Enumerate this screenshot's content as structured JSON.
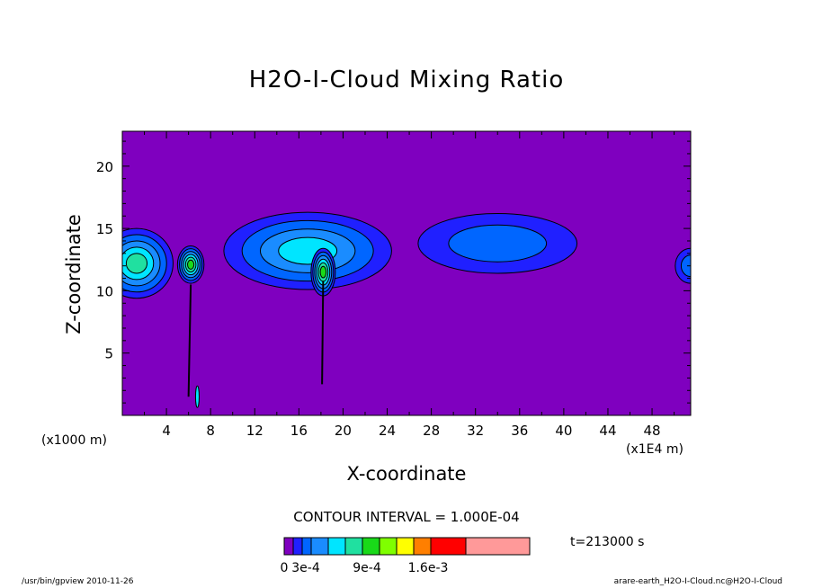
{
  "chart_data": {
    "type": "contour",
    "title": "H2O-I-Cloud Mixing Ratio",
    "xlabel": "X-coordinate",
    "ylabel": "Z-coordinate",
    "x_unit_note": "(x1E4 m)",
    "y_unit_note": "(x1000 m)",
    "xlim": [
      0,
      51.5
    ],
    "ylim": [
      0,
      22.8
    ],
    "xticks": [
      4,
      8,
      12,
      16,
      20,
      24,
      28,
      32,
      36,
      40,
      44,
      48
    ],
    "yticks": [
      5,
      10,
      15,
      20
    ],
    "background_color": "#7f00bf",
    "contour_interval": "CONTOUR INTERVAL = 1.000E-04",
    "time_label": "t=213000 s",
    "colorbar": {
      "colors": [
        "#7f00bf",
        "#2020ff",
        "#0066ff",
        "#1a8cff",
        "#00e5ff",
        "#20e0a0",
        "#19d919",
        "#7fff00",
        "#ffff00",
        "#ff7f00",
        "#ff0000",
        "#ff9999"
      ],
      "labels": [
        "0",
        "3e-4",
        "9e-4",
        "1.6e-3"
      ]
    },
    "features": [
      {
        "name": "left-edge-cloud",
        "x_center": 1.3,
        "z_center": 12.2,
        "x_radius": 3.3,
        "z_radius": 2.8,
        "peak_level": 5
      },
      {
        "name": "narrow-tower-6",
        "x_center": 6.2,
        "z_center": 12.1,
        "x_radius": 1.2,
        "z_radius": 1.5,
        "peak_level": 6
      },
      {
        "name": "central-anvil",
        "x_center": 16.8,
        "z_center": 13.2,
        "x_radius": 7.6,
        "z_radius": 3.1,
        "peak_level": 4
      },
      {
        "name": "tower-18",
        "x_center": 18.2,
        "z_center": 11.5,
        "x_radius": 1.1,
        "z_radius": 1.9,
        "peak_level": 6
      },
      {
        "name": "right-anvil",
        "x_center": 34.0,
        "z_center": 13.8,
        "x_radius": 7.2,
        "z_radius": 2.4,
        "peak_level": 2
      },
      {
        "name": "right-edge-cloud",
        "x_center": 51.5,
        "z_center": 12.0,
        "x_radius": 1.4,
        "z_radius": 1.4,
        "peak_level": 2
      }
    ],
    "grid": false
  },
  "labels": {
    "title": "H2O-I-Cloud Mixing Ratio",
    "xlabel": "X-coordinate",
    "ylabel": "Z-coordinate",
    "yunit": "(x1000 m)",
    "xunit": "(x1E4 m)",
    "ci": "CONTOUR INTERVAL = 1.000E-04",
    "time": "t=213000 s",
    "foot_left": "/usr/bin/gpview   2010-11-26",
    "foot_right": "arare-earth_H2O-I-Cloud.nc@H2O-I-Cloud"
  }
}
